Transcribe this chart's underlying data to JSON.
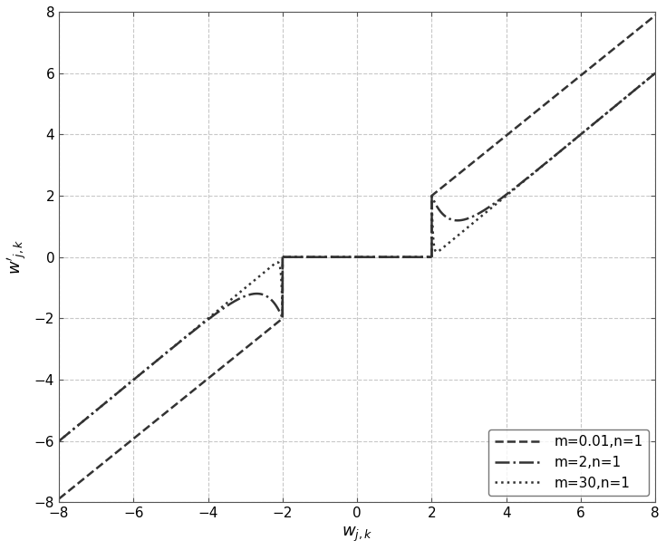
{
  "title": "",
  "xlabel": "w_{j,k}",
  "ylabel": "w'_{j,k}",
  "xlim": [
    -8,
    8
  ],
  "ylim": [
    -8,
    8
  ],
  "xticks": [
    -8,
    -6,
    -4,
    -2,
    0,
    2,
    4,
    6,
    8
  ],
  "yticks": [
    -8,
    -6,
    -4,
    -2,
    0,
    2,
    4,
    6,
    8
  ],
  "threshold": 2,
  "curves": [
    {
      "m": 0.01,
      "n": 1,
      "label": "m=0.01,n=1",
      "linestyle": "--",
      "color": "#333333",
      "linewidth": 1.8
    },
    {
      "m": 2,
      "n": 1,
      "label": "m=2,n=1",
      "linestyle": "-.",
      "color": "#333333",
      "linewidth": 1.8
    },
    {
      "m": 30,
      "n": 1,
      "label": "m=30,n=1",
      "linestyle": ":",
      "color": "#333333",
      "linewidth": 1.8
    }
  ],
  "grid_color": "#c8c8c8",
  "grid_linestyle": "--",
  "background_color": "#ffffff",
  "legend_loc": "lower right",
  "legend_fontsize": 11
}
